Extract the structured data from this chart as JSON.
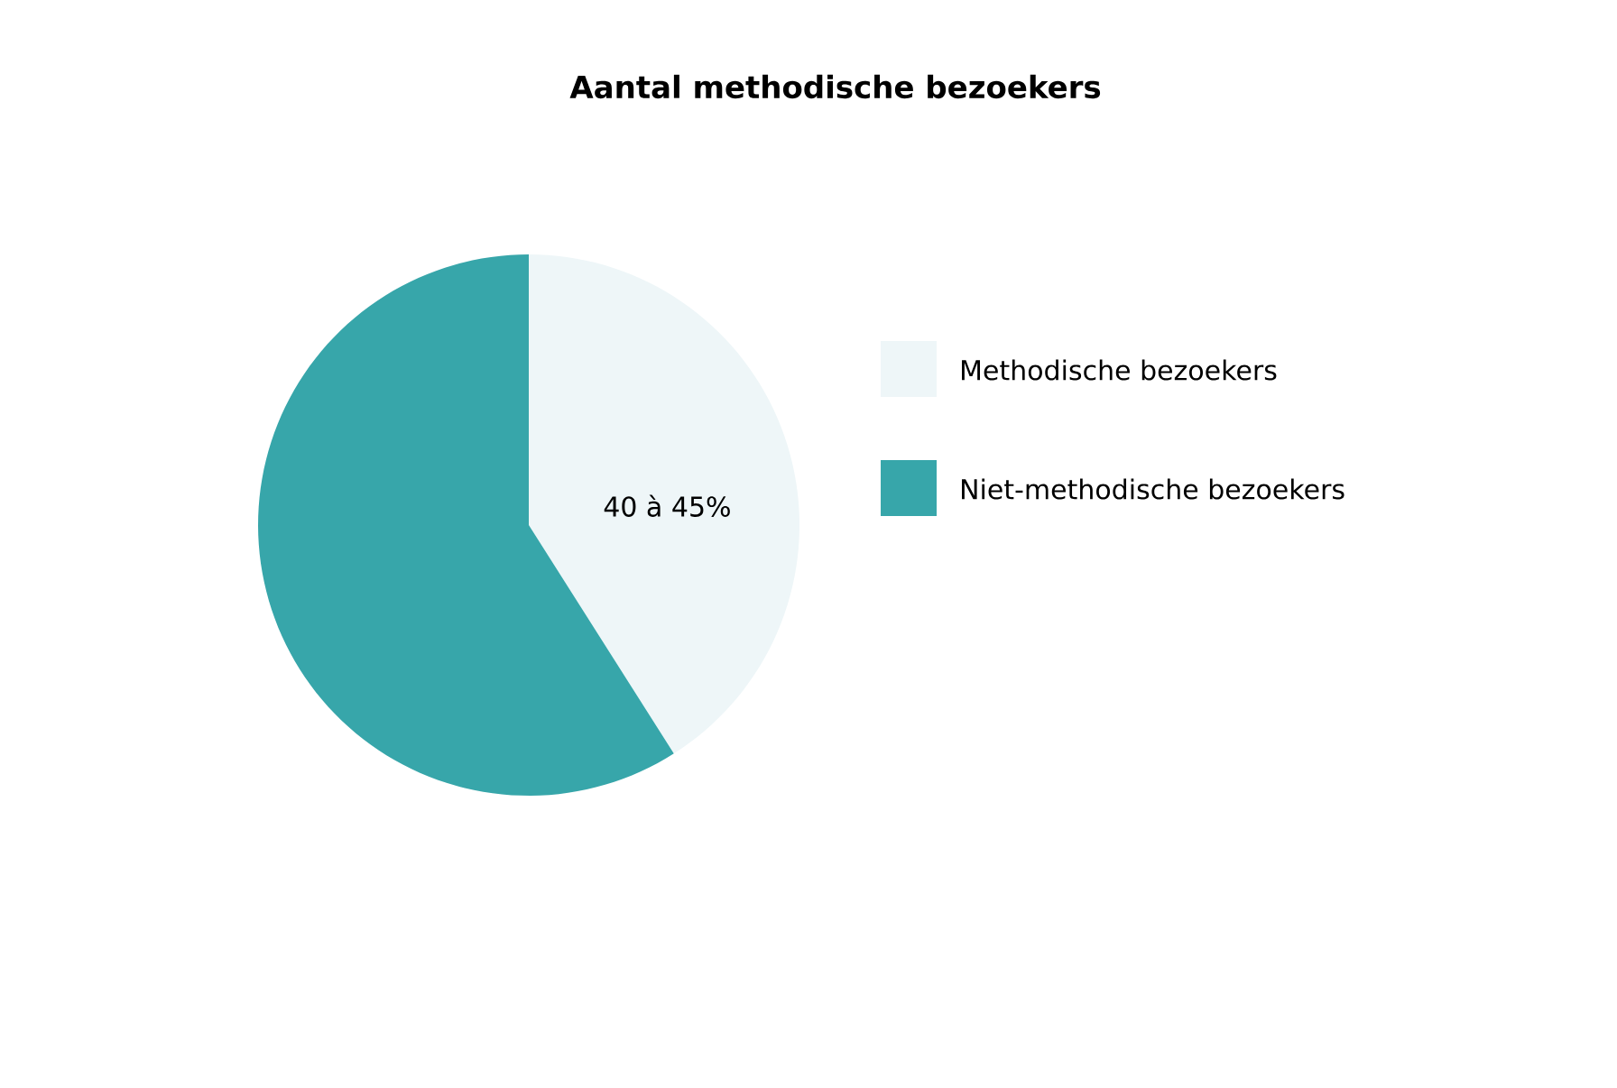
{
  "chart_data": {
    "type": "pie",
    "title": "Aantal methodische bezoekers",
    "categories": [
      "Methodische bezoekers",
      "Niet-methodische bezoekers"
    ],
    "values": [
      41,
      59
    ],
    "colors": [
      "#eef6f8",
      "#37a6aa"
    ],
    "annotations": [
      "40 à 45%"
    ],
    "legend": "right"
  }
}
